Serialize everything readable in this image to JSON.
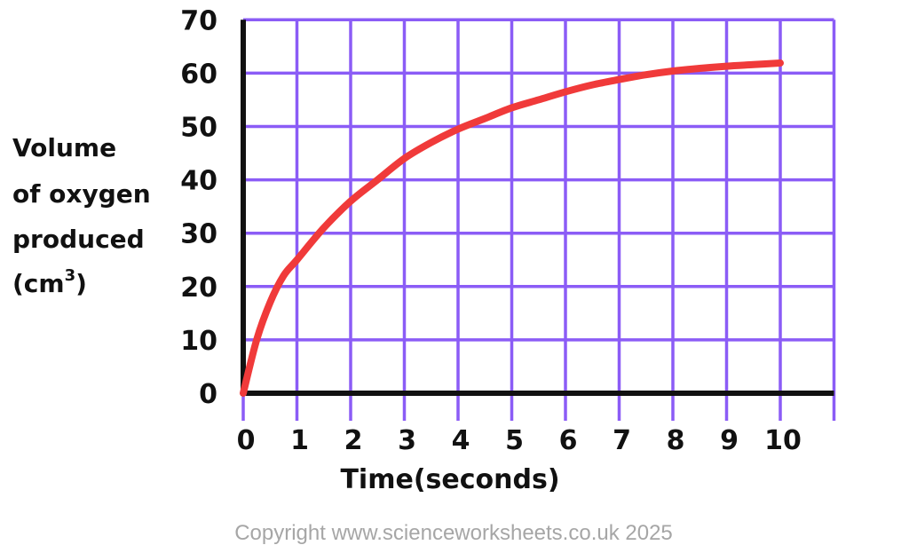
{
  "chart_data": {
    "type": "line",
    "xlabel": "Time(seconds)",
    "ylabel_lines": [
      "Volume",
      "of oxygen",
      "produced",
      "(cm",
      "3",
      ")"
    ],
    "x_ticks": [
      "0",
      "1",
      "2",
      "3",
      "4",
      "5",
      "6",
      "7",
      "8",
      "9",
      "10"
    ],
    "y_ticks": [
      "0",
      "10",
      "20",
      "30",
      "40",
      "50",
      "60",
      "70"
    ],
    "xlim": [
      0,
      11
    ],
    "ylim": [
      0,
      70
    ],
    "grid": true,
    "series": [
      {
        "color": "#f03a3a",
        "x": [
          0,
          0.25,
          0.5,
          0.75,
          1,
          1.5,
          2,
          2.5,
          3,
          3.5,
          4,
          4.5,
          5,
          5.5,
          6,
          6.5,
          7,
          7.5,
          8,
          8.5,
          9,
          9.5,
          10
        ],
        "y": [
          0,
          10,
          17,
          22,
          25,
          31,
          36,
          40,
          44,
          47,
          49.5,
          51.5,
          53.5,
          55,
          56.5,
          57.8,
          58.8,
          59.7,
          60.4,
          60.9,
          61.3,
          61.6,
          61.9
        ]
      }
    ]
  },
  "colors": {
    "grid": "#8b5cf6",
    "axis": "#111111",
    "line": "#f03a3a",
    "copyright": "#a6a6a6"
  },
  "footer": {
    "copyright": "Copyright www.scienceworksheets.co.uk 2025"
  }
}
